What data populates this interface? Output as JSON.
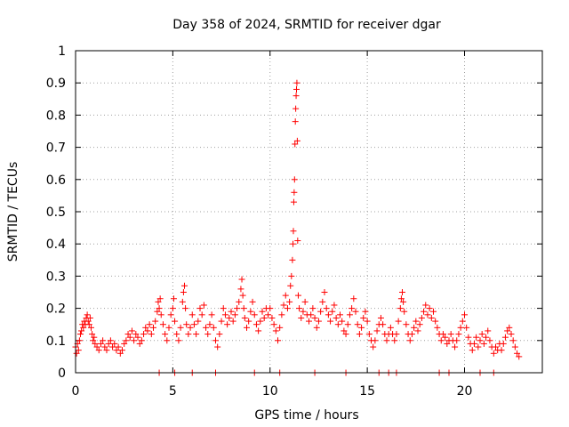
{
  "chart_data": {
    "type": "scatter",
    "title": "Day 358 of 2024, SRMTID for receiver dgar",
    "xlabel": "GPS time / hours",
    "ylabel": "SRMTID / TECUs",
    "xlim": [
      0,
      24
    ],
    "ylim": [
      0,
      1
    ],
    "xticks": [
      0,
      5,
      10,
      15,
      20
    ],
    "xtick_labels": [
      "0",
      "5",
      "10",
      "15",
      "20"
    ],
    "yticks": [
      0,
      0.1,
      0.2,
      0.3,
      0.4,
      0.5,
      0.6,
      0.7,
      0.8,
      0.9,
      1
    ],
    "ytick_labels": [
      "0",
      "0.1",
      "0.2",
      "0.3",
      "0.4",
      "0.5",
      "0.6",
      "0.7",
      "0.8",
      "0.9",
      "1"
    ],
    "grid": true,
    "marker": "+",
    "color": "#ff0000",
    "series": [
      {
        "name": "SRMTID",
        "points": [
          [
            0.0,
            0.08
          ],
          [
            0.05,
            0.06
          ],
          [
            0.1,
            0.09
          ],
          [
            0.15,
            0.07
          ],
          [
            0.2,
            0.1
          ],
          [
            0.25,
            0.12
          ],
          [
            0.3,
            0.13
          ],
          [
            0.35,
            0.15
          ],
          [
            0.4,
            0.14
          ],
          [
            0.45,
            0.16
          ],
          [
            0.5,
            0.15
          ],
          [
            0.55,
            0.17
          ],
          [
            0.6,
            0.18
          ],
          [
            0.65,
            0.16
          ],
          [
            0.7,
            0.15
          ],
          [
            0.75,
            0.17
          ],
          [
            0.8,
            0.14
          ],
          [
            0.85,
            0.12
          ],
          [
            0.9,
            0.1
          ],
          [
            0.95,
            0.11
          ],
          [
            1.0,
            0.09
          ],
          [
            1.1,
            0.08
          ],
          [
            1.2,
            0.07
          ],
          [
            1.3,
            0.09
          ],
          [
            1.4,
            0.1
          ],
          [
            1.5,
            0.08
          ],
          [
            1.6,
            0.07
          ],
          [
            1.7,
            0.09
          ],
          [
            1.8,
            0.1
          ],
          [
            1.9,
            0.08
          ],
          [
            2.0,
            0.09
          ],
          [
            2.1,
            0.07
          ],
          [
            2.2,
            0.08
          ],
          [
            2.3,
            0.06
          ],
          [
            2.4,
            0.07
          ],
          [
            2.5,
            0.09
          ],
          [
            2.6,
            0.1
          ],
          [
            2.7,
            0.12
          ],
          [
            2.8,
            0.11
          ],
          [
            2.9,
            0.13
          ],
          [
            3.0,
            0.1
          ],
          [
            3.1,
            0.12
          ],
          [
            3.2,
            0.11
          ],
          [
            3.3,
            0.09
          ],
          [
            3.4,
            0.1
          ],
          [
            3.5,
            0.12
          ],
          [
            3.6,
            0.14
          ],
          [
            3.7,
            0.13
          ],
          [
            3.8,
            0.15
          ],
          [
            3.9,
            0.12
          ],
          [
            4.0,
            0.14
          ],
          [
            4.1,
            0.16
          ],
          [
            4.2,
            0.19
          ],
          [
            4.25,
            0.22
          ],
          [
            4.3,
            0.2
          ],
          [
            4.35,
            0.23
          ],
          [
            4.4,
            0.18
          ],
          [
            4.5,
            0.15
          ],
          [
            4.6,
            0.12
          ],
          [
            4.7,
            0.1
          ],
          [
            4.8,
            0.14
          ],
          [
            4.9,
            0.18
          ],
          [
            5.0,
            0.2
          ],
          [
            5.05,
            0.23
          ],
          [
            5.1,
            0.16
          ],
          [
            5.2,
            0.12
          ],
          [
            5.3,
            0.1
          ],
          [
            5.4,
            0.14
          ],
          [
            5.5,
            0.22
          ],
          [
            5.55,
            0.25
          ],
          [
            5.6,
            0.27
          ],
          [
            5.65,
            0.2
          ],
          [
            5.7,
            0.15
          ],
          [
            5.8,
            0.12
          ],
          [
            5.9,
            0.14
          ],
          [
            6.0,
            0.18
          ],
          [
            6.1,
            0.15
          ],
          [
            6.2,
            0.12
          ],
          [
            6.3,
            0.16
          ],
          [
            6.4,
            0.2
          ],
          [
            6.5,
            0.18
          ],
          [
            6.6,
            0.21
          ],
          [
            6.7,
            0.14
          ],
          [
            6.8,
            0.12
          ],
          [
            6.9,
            0.15
          ],
          [
            7.0,
            0.18
          ],
          [
            7.1,
            0.14
          ],
          [
            7.2,
            0.1
          ],
          [
            7.3,
            0.08
          ],
          [
            7.4,
            0.12
          ],
          [
            7.5,
            0.16
          ],
          [
            7.6,
            0.2
          ],
          [
            7.7,
            0.18
          ],
          [
            7.8,
            0.15
          ],
          [
            7.9,
            0.17
          ],
          [
            8.0,
            0.19
          ],
          [
            8.1,
            0.16
          ],
          [
            8.2,
            0.18
          ],
          [
            8.3,
            0.2
          ],
          [
            8.4,
            0.22
          ],
          [
            8.5,
            0.26
          ],
          [
            8.55,
            0.29
          ],
          [
            8.6,
            0.24
          ],
          [
            8.65,
            0.2
          ],
          [
            8.7,
            0.17
          ],
          [
            8.8,
            0.14
          ],
          [
            8.9,
            0.16
          ],
          [
            9.0,
            0.19
          ],
          [
            9.1,
            0.22
          ],
          [
            9.2,
            0.18
          ],
          [
            9.3,
            0.15
          ],
          [
            9.4,
            0.13
          ],
          [
            9.5,
            0.16
          ],
          [
            9.6,
            0.19
          ],
          [
            9.7,
            0.17
          ],
          [
            9.8,
            0.2
          ],
          [
            9.9,
            0.18
          ],
          [
            10.0,
            0.2
          ],
          [
            10.1,
            0.17
          ],
          [
            10.2,
            0.15
          ],
          [
            10.3,
            0.13
          ],
          [
            10.4,
            0.1
          ],
          [
            10.5,
            0.14
          ],
          [
            10.6,
            0.18
          ],
          [
            10.7,
            0.21
          ],
          [
            10.8,
            0.24
          ],
          [
            10.9,
            0.2
          ],
          [
            11.0,
            0.22
          ],
          [
            11.05,
            0.27
          ],
          [
            11.1,
            0.3
          ],
          [
            11.15,
            0.35
          ],
          [
            11.18,
            0.4
          ],
          [
            11.2,
            0.44
          ],
          [
            11.22,
            0.53
          ],
          [
            11.24,
            0.56
          ],
          [
            11.26,
            0.6
          ],
          [
            11.28,
            0.71
          ],
          [
            11.3,
            0.78
          ],
          [
            11.32,
            0.82
          ],
          [
            11.34,
            0.86
          ],
          [
            11.36,
            0.88
          ],
          [
            11.38,
            0.9
          ],
          [
            11.4,
            0.72
          ],
          [
            11.42,
            0.41
          ],
          [
            11.45,
            0.24
          ],
          [
            11.5,
            0.2
          ],
          [
            11.6,
            0.17
          ],
          [
            11.7,
            0.19
          ],
          [
            11.8,
            0.22
          ],
          [
            11.9,
            0.18
          ],
          [
            12.0,
            0.16
          ],
          [
            12.1,
            0.18
          ],
          [
            12.2,
            0.2
          ],
          [
            12.3,
            0.17
          ],
          [
            12.4,
            0.14
          ],
          [
            12.5,
            0.16
          ],
          [
            12.6,
            0.19
          ],
          [
            12.7,
            0.22
          ],
          [
            12.8,
            0.25
          ],
          [
            12.9,
            0.2
          ],
          [
            13.0,
            0.18
          ],
          [
            13.1,
            0.16
          ],
          [
            13.2,
            0.19
          ],
          [
            13.3,
            0.21
          ],
          [
            13.4,
            0.17
          ],
          [
            13.5,
            0.15
          ],
          [
            13.6,
            0.18
          ],
          [
            13.7,
            0.16
          ],
          [
            13.8,
            0.13
          ],
          [
            13.9,
            0.12
          ],
          [
            14.0,
            0.15
          ],
          [
            14.1,
            0.18
          ],
          [
            14.2,
            0.2
          ],
          [
            14.3,
            0.23
          ],
          [
            14.4,
            0.19
          ],
          [
            14.5,
            0.15
          ],
          [
            14.6,
            0.12
          ],
          [
            14.7,
            0.14
          ],
          [
            14.8,
            0.17
          ],
          [
            14.9,
            0.19
          ],
          [
            15.0,
            0.16
          ],
          [
            15.1,
            0.12
          ],
          [
            15.2,
            0.1
          ],
          [
            15.3,
            0.08
          ],
          [
            15.4,
            0.1
          ],
          [
            15.5,
            0.13
          ],
          [
            15.6,
            0.15
          ],
          [
            15.7,
            0.17
          ],
          [
            15.8,
            0.15
          ],
          [
            15.9,
            0.12
          ],
          [
            16.0,
            0.1
          ],
          [
            16.1,
            0.12
          ],
          [
            16.2,
            0.14
          ],
          [
            16.3,
            0.12
          ],
          [
            16.4,
            0.1
          ],
          [
            16.5,
            0.12
          ],
          [
            16.6,
            0.16
          ],
          [
            16.7,
            0.2
          ],
          [
            16.75,
            0.23
          ],
          [
            16.8,
            0.25
          ],
          [
            16.85,
            0.22
          ],
          [
            16.9,
            0.19
          ],
          [
            17.0,
            0.15
          ],
          [
            17.1,
            0.12
          ],
          [
            17.2,
            0.1
          ],
          [
            17.3,
            0.12
          ],
          [
            17.4,
            0.14
          ],
          [
            17.5,
            0.16
          ],
          [
            17.6,
            0.13
          ],
          [
            17.7,
            0.15
          ],
          [
            17.8,
            0.17
          ],
          [
            17.9,
            0.19
          ],
          [
            18.0,
            0.21
          ],
          [
            18.1,
            0.18
          ],
          [
            18.2,
            0.2
          ],
          [
            18.3,
            0.17
          ],
          [
            18.4,
            0.19
          ],
          [
            18.5,
            0.16
          ],
          [
            18.6,
            0.14
          ],
          [
            18.7,
            0.12
          ],
          [
            18.8,
            0.1
          ],
          [
            18.9,
            0.12
          ],
          [
            19.0,
            0.11
          ],
          [
            19.1,
            0.09
          ],
          [
            19.2,
            0.1
          ],
          [
            19.3,
            0.12
          ],
          [
            19.4,
            0.1
          ],
          [
            19.5,
            0.08
          ],
          [
            19.6,
            0.1
          ],
          [
            19.7,
            0.12
          ],
          [
            19.8,
            0.14
          ],
          [
            19.9,
            0.16
          ],
          [
            20.0,
            0.18
          ],
          [
            20.1,
            0.14
          ],
          [
            20.2,
            0.11
          ],
          [
            20.3,
            0.09
          ],
          [
            20.4,
            0.07
          ],
          [
            20.5,
            0.09
          ],
          [
            20.6,
            0.11
          ],
          [
            20.7,
            0.08
          ],
          [
            20.8,
            0.1
          ],
          [
            20.9,
            0.12
          ],
          [
            21.0,
            0.09
          ],
          [
            21.1,
            0.11
          ],
          [
            21.2,
            0.13
          ],
          [
            21.3,
            0.1
          ],
          [
            21.4,
            0.08
          ],
          [
            21.5,
            0.06
          ],
          [
            21.6,
            0.08
          ],
          [
            21.7,
            0.07
          ],
          [
            21.8,
            0.09
          ],
          [
            21.9,
            0.07
          ],
          [
            22.0,
            0.09
          ],
          [
            22.1,
            0.11
          ],
          [
            22.2,
            0.13
          ],
          [
            22.3,
            0.14
          ],
          [
            22.4,
            0.12
          ],
          [
            22.5,
            0.1
          ],
          [
            22.6,
            0.08
          ],
          [
            22.7,
            0.06
          ],
          [
            22.8,
            0.05
          ],
          [
            4.3,
            0
          ],
          [
            5.1,
            0
          ],
          [
            6.0,
            0
          ],
          [
            7.2,
            0
          ],
          [
            9.2,
            0
          ],
          [
            10.5,
            0
          ],
          [
            12.3,
            0
          ],
          [
            13.9,
            0
          ],
          [
            15.6,
            0
          ],
          [
            16.1,
            0
          ],
          [
            16.5,
            0
          ],
          [
            18.7,
            0
          ],
          [
            19.2,
            0
          ],
          [
            20.8,
            0
          ],
          [
            21.5,
            0
          ]
        ]
      }
    ]
  }
}
